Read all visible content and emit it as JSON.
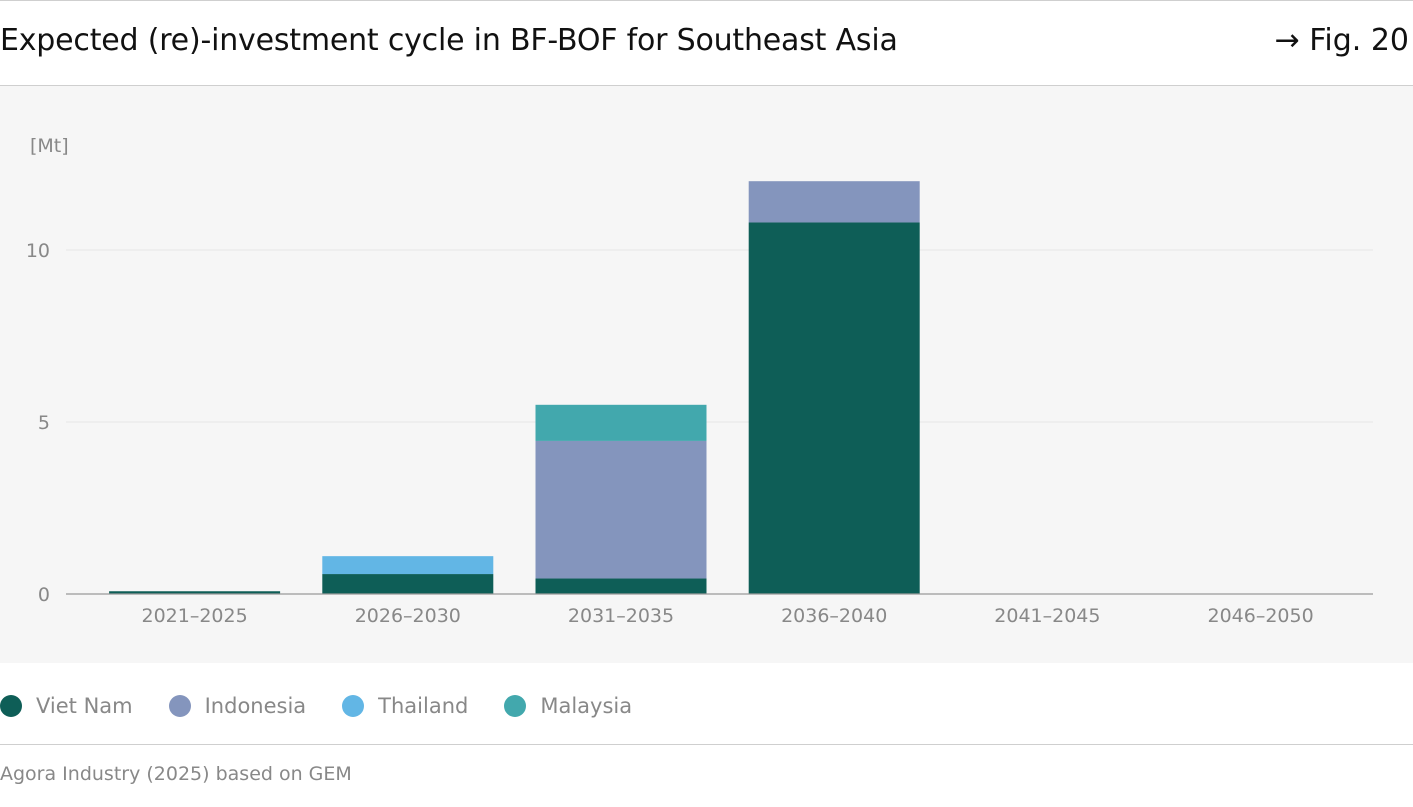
{
  "header": {
    "title": "Expected (re)-investment cycle in BF-BOF for Southeast Asia",
    "figure_ref": "→ Fig. 20"
  },
  "colors": {
    "Viet Nam": "#0e5e57",
    "Indonesia": "#8495bd",
    "Thailand": "#62b6e5",
    "Malaysia": "#42a8ad"
  },
  "chart_data": {
    "type": "bar",
    "stacked": true,
    "unit_label": "[Mt]",
    "categories": [
      "2021–2025",
      "2026–2030",
      "2031–2035",
      "2036–2040",
      "2041–2045",
      "2046–2050"
    ],
    "series": [
      {
        "name": "Viet Nam",
        "values": [
          0.08,
          0.58,
          0.45,
          10.8,
          0,
          0
        ]
      },
      {
        "name": "Indonesia",
        "values": [
          0,
          0,
          4.0,
          1.2,
          0,
          0
        ]
      },
      {
        "name": "Thailand",
        "values": [
          0,
          0.52,
          0,
          0,
          0,
          0
        ]
      },
      {
        "name": "Malaysia",
        "values": [
          0,
          0,
          1.05,
          0,
          0,
          0
        ]
      }
    ],
    "yticks": [
      0,
      5,
      10
    ],
    "ylim": [
      0,
      12.5
    ],
    "grid": true,
    "legend_position": "bottom-left"
  },
  "source": "Agora Industry (2025) based on GEM"
}
